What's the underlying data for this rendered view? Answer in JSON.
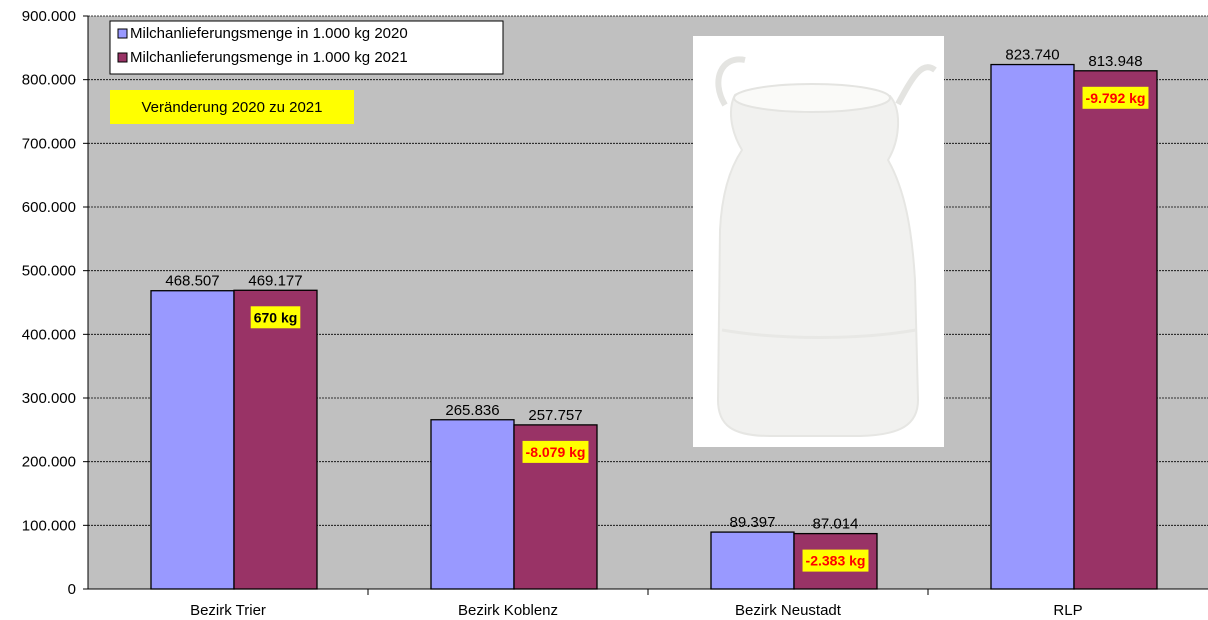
{
  "chart_data": {
    "type": "bar",
    "categories": [
      "Bezirk Trier",
      "Bezirk Koblenz",
      "Bezirk Neustadt",
      "RLP"
    ],
    "series": [
      {
        "name": "Milchanlieferungsmenge in 1.000 kg 2020",
        "values": [
          468507,
          265836,
          89397,
          823740
        ],
        "labels": [
          "468.507",
          "265.836",
          "89.397",
          "823.740"
        ],
        "color": "#9999ff"
      },
      {
        "name": "Milchanlieferungsmenge in 1.000 kg 2021",
        "values": [
          469177,
          257757,
          87014,
          813948
        ],
        "labels": [
          "469.177",
          "257.757",
          "87.014",
          "813.948"
        ],
        "color": "#993366"
      }
    ],
    "changes": [
      {
        "label": "670 kg",
        "color": "#000000"
      },
      {
        "label": "-8.079 kg",
        "color": "#ff0000"
      },
      {
        "label": "-2.383 kg",
        "color": "#ff0000"
      },
      {
        "label": "-9.792 kg",
        "color": "#ff0000"
      }
    ],
    "annotation": "Veränderung 2020 zu 2021",
    "ylim": [
      0,
      900000
    ],
    "yticks": [
      0,
      100000,
      200000,
      300000,
      400000,
      500000,
      600000,
      700000,
      800000,
      900000
    ],
    "ytick_labels": [
      "0",
      "100.000",
      "200.000",
      "300.000",
      "400.000",
      "500.000",
      "600.000",
      "700.000",
      "800.000",
      "900.000"
    ],
    "grid": true,
    "legend_position": "top-left",
    "plot_background": "#c0c0c0",
    "highlight_color": "#ffff00"
  }
}
